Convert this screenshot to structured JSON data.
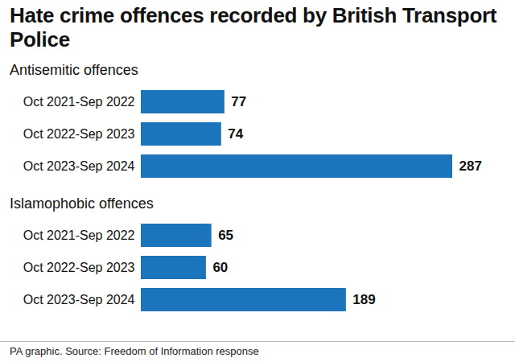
{
  "title": "Hate crime offences recorded by British Transport Police",
  "caption": "PA graphic. Source: Freedom of Information response",
  "chart_data": [
    {
      "type": "bar",
      "title": "Antisemitic offences",
      "orientation": "horizontal",
      "categories": [
        "Oct 2021-Sep 2022",
        "Oct 2022-Sep 2023",
        "Oct 2023-Sep 2024"
      ],
      "values": [
        77,
        74,
        287
      ],
      "color": "#1c75bc",
      "xlim": [
        0,
        330
      ],
      "data_labels": true,
      "tick_labels": "y",
      "grid": false
    },
    {
      "type": "bar",
      "title": "Islamophobic offences",
      "orientation": "horizontal",
      "categories": [
        "Oct 2021-Sep 2022",
        "Oct 2022-Sep 2023",
        "Oct 2023-Sep 2024"
      ],
      "values": [
        65,
        60,
        189
      ],
      "color": "#1c75bc",
      "xlim": [
        0,
        330
      ],
      "data_labels": true,
      "tick_labels": "y",
      "grid": false
    }
  ]
}
